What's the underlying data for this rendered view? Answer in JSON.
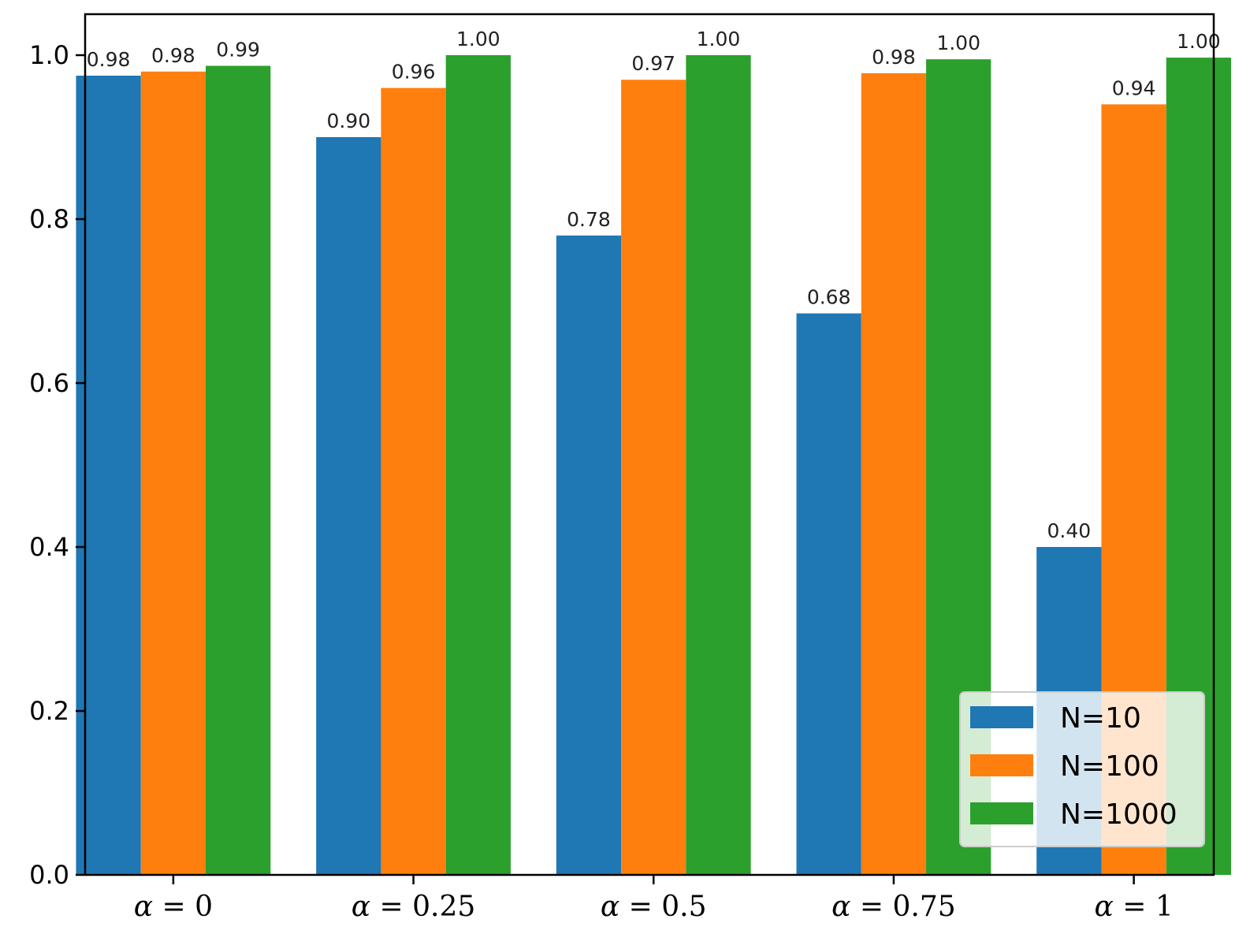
{
  "chart_data": {
    "type": "bar",
    "title": "",
    "xlabel": "",
    "ylabel": "",
    "ylim": [
      0,
      1.05
    ],
    "yticks": [
      0.0,
      0.2,
      0.4,
      0.6,
      0.8,
      1.0
    ],
    "ytick_labels": [
      "0.0",
      "0.2",
      "0.4",
      "0.6",
      "0.8",
      "1.0"
    ],
    "categories": [
      {
        "symbol": "α",
        "rest": "= 0"
      },
      {
        "symbol": "α",
        "rest": "= 0.25"
      },
      {
        "symbol": "α",
        "rest": "= 0.5"
      },
      {
        "symbol": "α",
        "rest": "= 0.75"
      },
      {
        "symbol": "α",
        "rest": "= 1"
      }
    ],
    "series": [
      {
        "name": "N=10",
        "color": "#1f77b4",
        "values": [
          0.975,
          0.9,
          0.78,
          0.685,
          0.4
        ],
        "labels": [
          "0.98",
          "0.90",
          "0.78",
          "0.68",
          "0.40"
        ]
      },
      {
        "name": "N=100",
        "color": "#ff7f0e",
        "values": [
          0.98,
          0.96,
          0.97,
          0.978,
          0.94
        ],
        "labels": [
          "0.98",
          "0.96",
          "0.97",
          "0.98",
          "0.94"
        ]
      },
      {
        "name": "N=1000",
        "color": "#2ca02c",
        "values": [
          0.987,
          1.0,
          1.0,
          0.995,
          0.997
        ],
        "labels": [
          "0.99",
          "1.00",
          "1.00",
          "1.00",
          "1.00"
        ]
      }
    ],
    "legend": {
      "position": "lower-right"
    },
    "grid": false
  }
}
